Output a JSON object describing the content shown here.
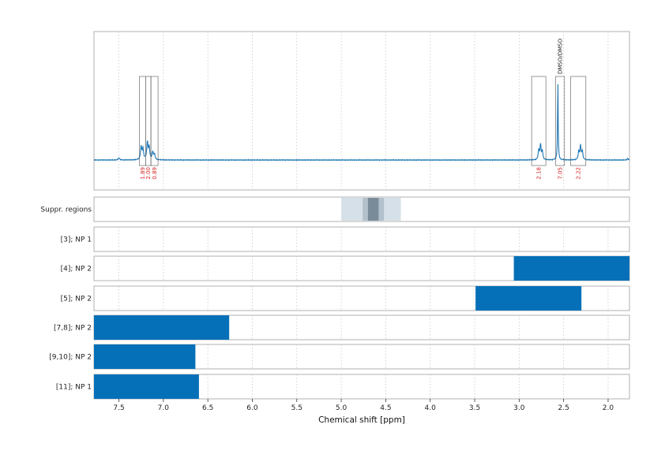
{
  "chart_data": {
    "type": "nmr_spectrum_with_region_tracks",
    "xlabel": "Chemical shift [ppm]",
    "x_reversed": true,
    "xlim": [
      7.78,
      1.76
    ],
    "x_ticks": [
      7.5,
      7.0,
      6.5,
      6.0,
      5.5,
      5.0,
      4.5,
      4.0,
      3.5,
      3.0,
      2.5,
      2.0
    ],
    "x_tick_labels": [
      "7.5",
      "7.0",
      "6.5",
      "6.0",
      "5.5",
      "5.0",
      "4.5",
      "4.0",
      "3.5",
      "3.0",
      "2.5",
      "2.0"
    ],
    "spectrum": {
      "line_color": "#1f77b4",
      "peaks": [
        {
          "ppm": 7.25,
          "height": 0.12,
          "width": 0.008
        },
        {
          "ppm": 7.23,
          "height": 0.1,
          "width": 0.008
        },
        {
          "ppm": 7.18,
          "height": 0.16,
          "width": 0.008
        },
        {
          "ppm": 7.16,
          "height": 0.11,
          "width": 0.008
        },
        {
          "ppm": 7.12,
          "height": 0.07,
          "width": 0.008
        },
        {
          "ppm": 7.1,
          "height": 0.05,
          "width": 0.008
        },
        {
          "ppm": 7.5,
          "height": 0.02,
          "width": 0.008
        },
        {
          "ppm": 2.78,
          "height": 0.09,
          "width": 0.007
        },
        {
          "ppm": 2.76,
          "height": 0.14,
          "width": 0.007
        },
        {
          "ppm": 2.74,
          "height": 0.08,
          "width": 0.007
        },
        {
          "ppm": 2.565,
          "height": 0.72,
          "width": 0.004
        },
        {
          "ppm": 2.33,
          "height": 0.08,
          "width": 0.007
        },
        {
          "ppm": 2.31,
          "height": 0.13,
          "width": 0.007
        },
        {
          "ppm": 2.29,
          "height": 0.08,
          "width": 0.007
        },
        {
          "ppm": 1.78,
          "height": 0.015,
          "width": 0.006
        }
      ],
      "integration_regions": [
        {
          "from": 7.27,
          "to": 7.2,
          "label": "1.89"
        },
        {
          "from": 7.2,
          "to": 7.14,
          "label": "2.00"
        },
        {
          "from": 7.14,
          "to": 7.06,
          "label": "0.89"
        },
        {
          "from": 2.86,
          "to": 2.7,
          "label": "2.18"
        },
        {
          "from": 2.59,
          "to": 2.49,
          "label": "7.05"
        },
        {
          "from": 2.42,
          "to": 2.25,
          "label": "2.22"
        }
      ],
      "solvent_label": "DMSO/DMSO"
    },
    "suppressed_regions": {
      "label": "Suppr. regions",
      "bands": [
        {
          "from": 5.0,
          "to": 4.33,
          "color": "#d5e0e8"
        },
        {
          "from": 4.76,
          "to": 4.52,
          "color": "#b3c1cc"
        },
        {
          "from": 4.7,
          "to": 4.58,
          "color": "#7a8c99"
        }
      ]
    },
    "tracks": [
      {
        "label": "[3]; NP 1",
        "intervals": []
      },
      {
        "label": "[4]; NP 2",
        "intervals": [
          [
            3.06,
            1.76
          ]
        ]
      },
      {
        "label": "[5]; NP 2",
        "intervals": [
          [
            3.49,
            2.3
          ]
        ]
      },
      {
        "label": "[7,8]; NP 2",
        "intervals": [
          [
            7.78,
            6.26
          ]
        ]
      },
      {
        "label": "[9,10]; NP 2",
        "intervals": [
          [
            7.78,
            6.64
          ]
        ]
      },
      {
        "label": "[11]; NP 1",
        "intervals": [
          [
            7.78,
            6.6
          ]
        ]
      }
    ],
    "bar_color": "#0570b8"
  }
}
